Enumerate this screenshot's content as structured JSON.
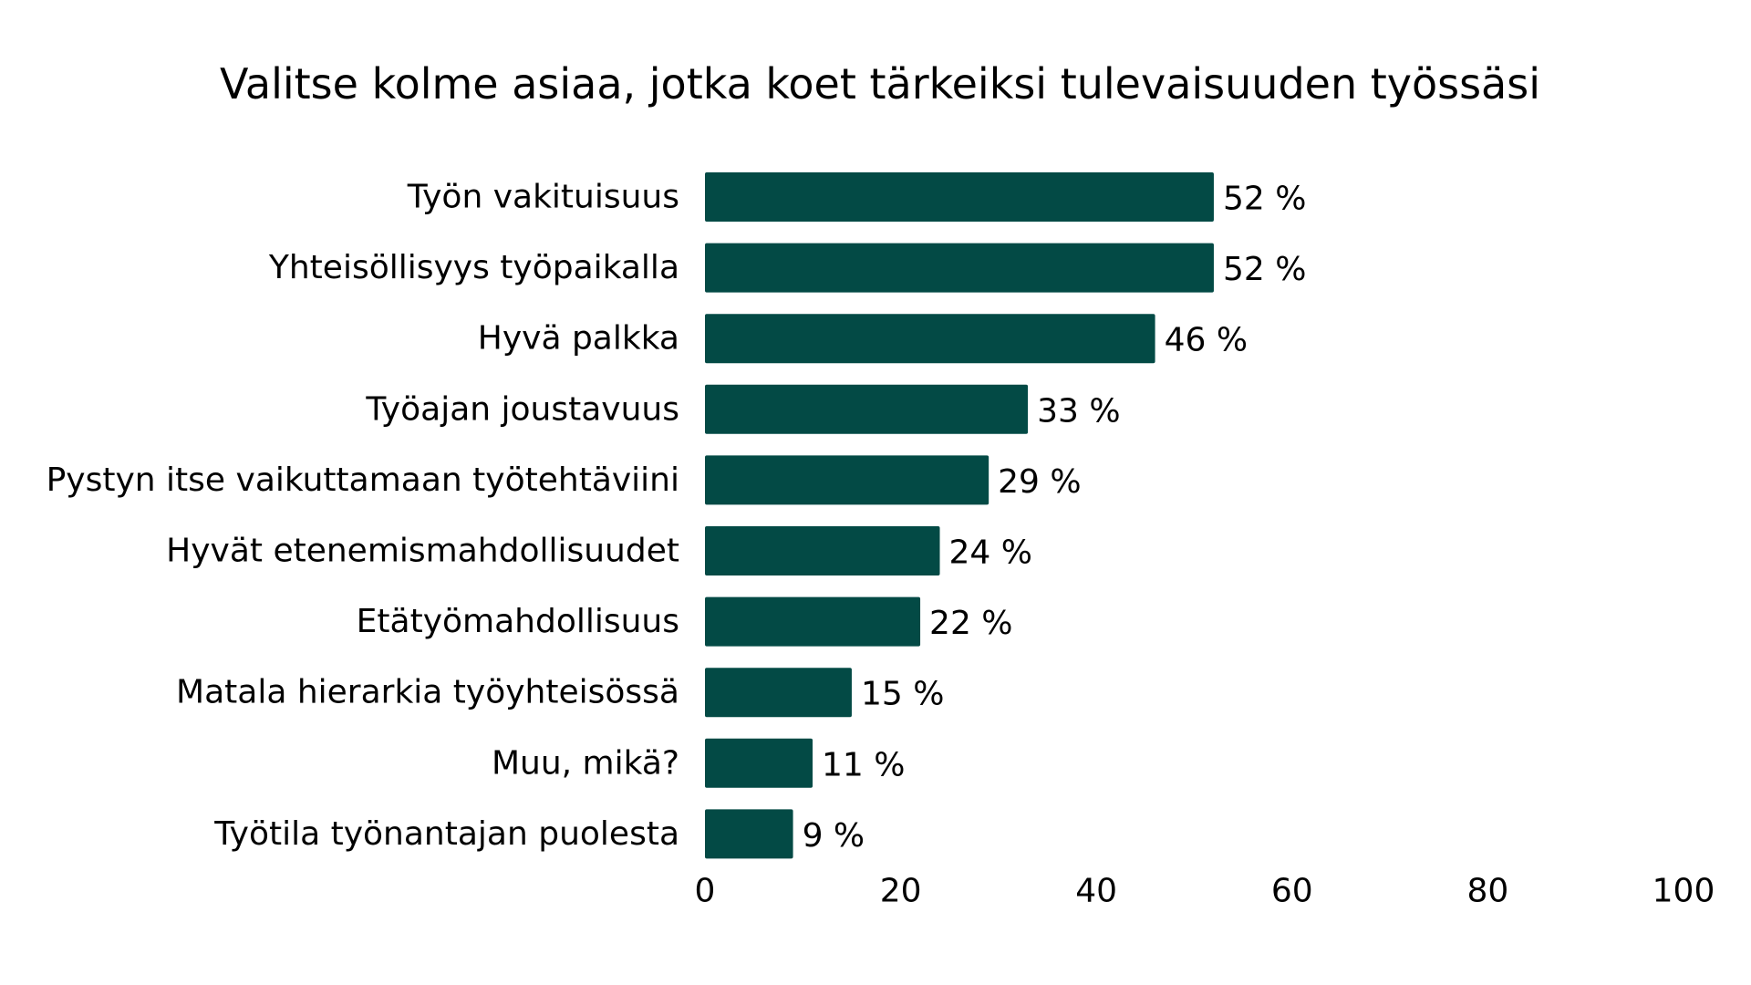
{
  "chart_data": {
    "type": "bar",
    "orientation": "horizontal",
    "title": "Valitse kolme asiaa, jotka koet tärkeiksi tulevaisuuden työssäsi",
    "categories": [
      "Työn vakituisuus",
      "Yhteisöllisyys työpaikalla",
      "Hyvä palkka",
      "Työajan joustavuus",
      "Pystyn itse vaikuttamaan työtehtäviini",
      "Hyvät etenemismahdollisuudet",
      "Etätyömahdollisuus",
      "Matala hierarkia työyhteisössä",
      "Muu, mikä?",
      "Työtila työnantajan puolesta"
    ],
    "values": [
      52,
      52,
      46,
      33,
      29,
      24,
      22,
      15,
      11,
      9
    ],
    "value_labels": [
      "52 %",
      "52 %",
      "46 %",
      "33 %",
      "29 %",
      "24 %",
      "22 %",
      "15 %",
      "11 %",
      "9 %"
    ],
    "xticks": [
      0,
      20,
      40,
      60,
      80,
      100
    ],
    "xtick_labels": [
      "0",
      "20",
      "40",
      "60",
      "80",
      "100"
    ],
    "xlim": [
      0,
      100
    ],
    "xlabel": "",
    "ylabel": "",
    "grid": false,
    "legend": "none",
    "bar_color": "#034a45"
  }
}
